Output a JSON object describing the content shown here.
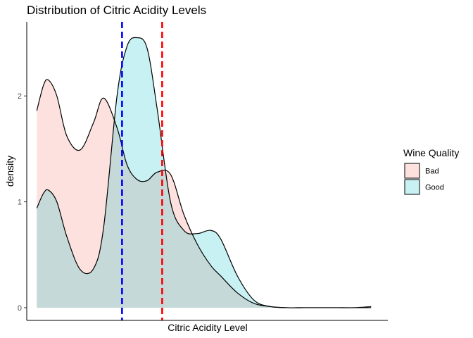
{
  "chart_data": {
    "type": "area",
    "title": "Distribution of Citric Acidity Levels",
    "xlabel": "Citric Acidity Level",
    "ylabel": "density",
    "xlim": [
      -0.03,
      1.05
    ],
    "ylim": [
      -0.12,
      2.7
    ],
    "yticks": [
      0,
      1,
      2
    ],
    "grid": false,
    "legend": {
      "title": "Wine Quality",
      "position": "right"
    },
    "series": [
      {
        "name": "Bad",
        "fill": "#f8766d",
        "x": [
          0,
          0.02,
          0.035,
          0.06,
          0.09,
          0.13,
          0.17,
          0.2,
          0.24,
          0.27,
          0.3,
          0.33,
          0.36,
          0.4,
          0.44,
          0.48,
          0.52,
          0.55,
          0.6,
          0.65,
          0.7,
          0.75,
          0.8,
          0.85,
          0.9,
          0.95,
          1.0
        ],
        "values": [
          1.86,
          2.1,
          2.15,
          2.0,
          1.62,
          1.49,
          1.75,
          1.98,
          1.7,
          1.35,
          1.21,
          1.2,
          1.28,
          1.26,
          0.88,
          0.6,
          0.4,
          0.3,
          0.14,
          0.04,
          0.01,
          0.0,
          0.0,
          0.0,
          0.0,
          0.0,
          0.0
        ]
      },
      {
        "name": "Good",
        "fill": "#00bfc4",
        "x": [
          0,
          0.02,
          0.035,
          0.06,
          0.09,
          0.13,
          0.17,
          0.2,
          0.24,
          0.27,
          0.3,
          0.33,
          0.36,
          0.4,
          0.44,
          0.48,
          0.52,
          0.55,
          0.6,
          0.65,
          0.7,
          0.75,
          0.8,
          0.85,
          0.9,
          0.95,
          1.0
        ],
        "values": [
          0.94,
          1.08,
          1.11,
          1.0,
          0.67,
          0.36,
          0.37,
          0.76,
          2.0,
          2.47,
          2.55,
          2.45,
          1.88,
          1.0,
          0.73,
          0.7,
          0.73,
          0.65,
          0.3,
          0.07,
          0.01,
          0.0,
          0.0,
          0.0,
          0.0,
          0.0,
          0.01
        ]
      }
    ],
    "vlines": [
      {
        "x": 0.255,
        "color": "#0000ff",
        "group": "Bad"
      },
      {
        "x": 0.375,
        "color": "#ff0000",
        "group": "Good"
      }
    ]
  }
}
